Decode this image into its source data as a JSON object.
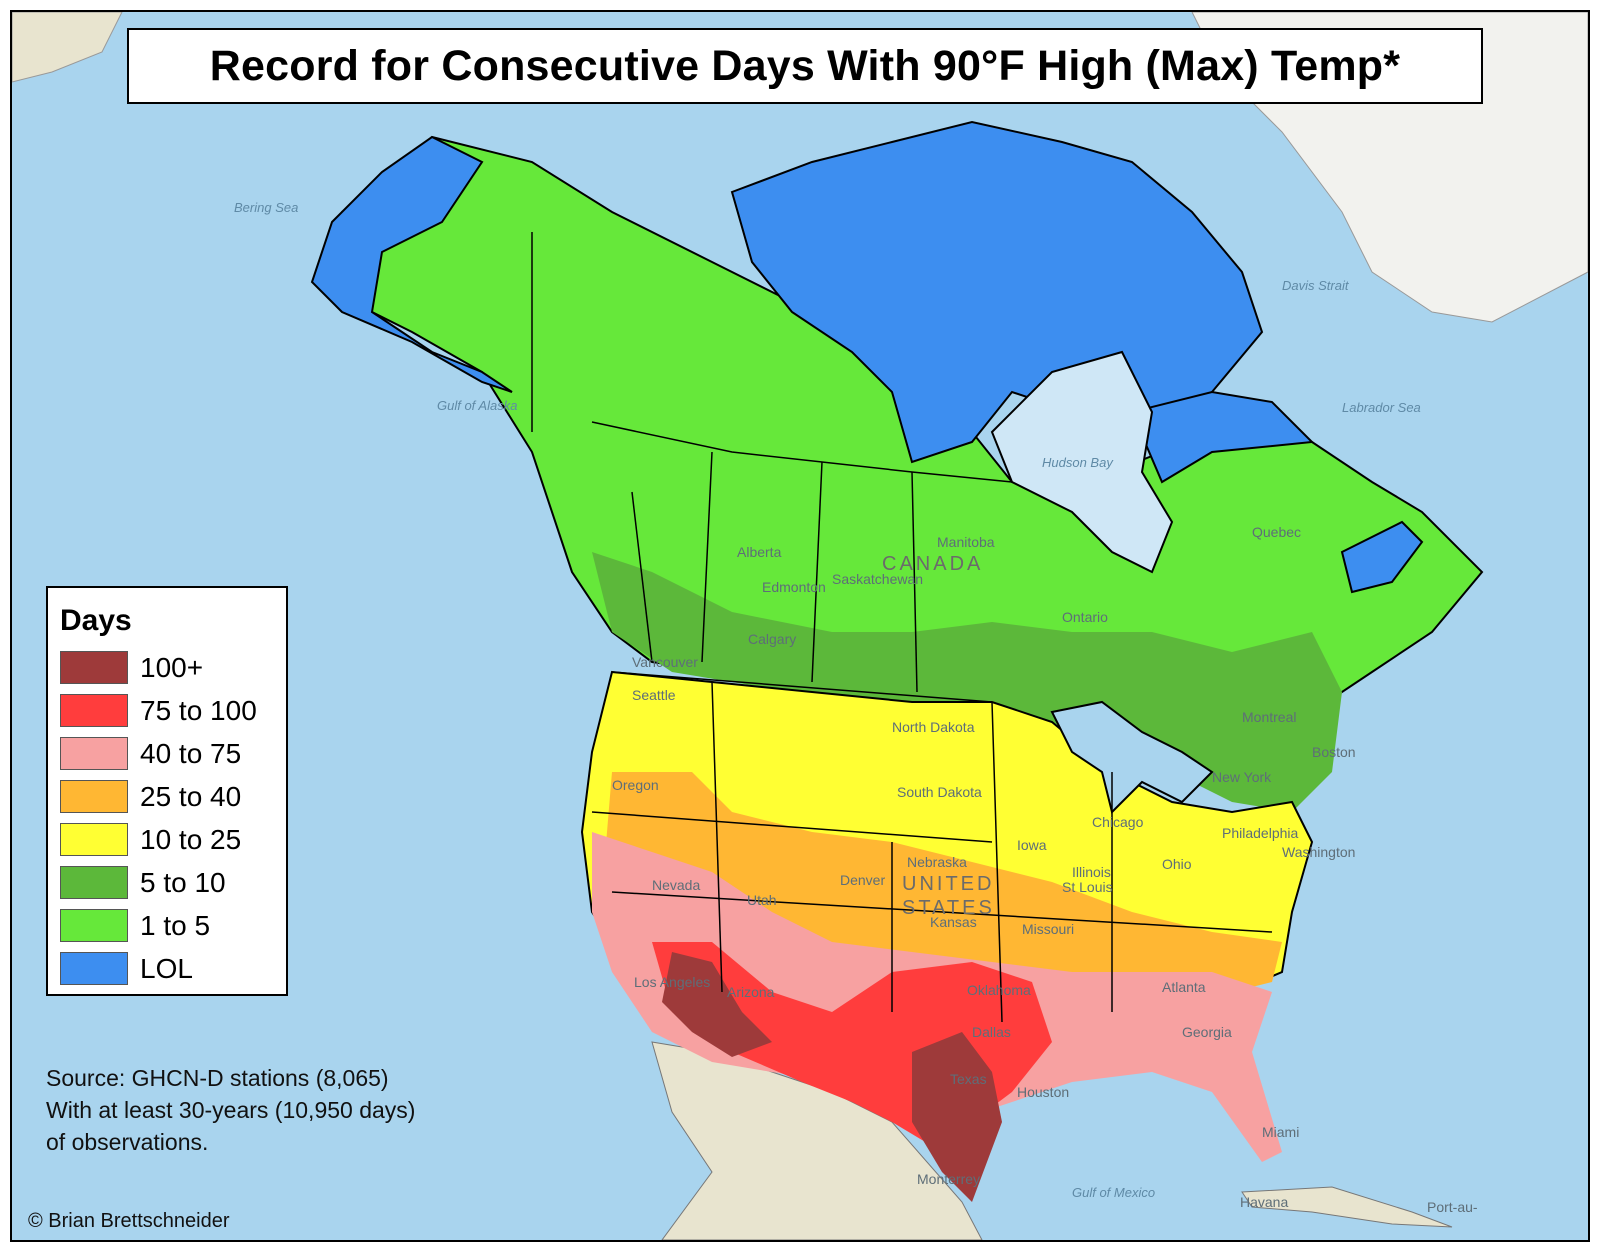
{
  "title": "Record for Consecutive Days With 90°F High (Max) Temp*",
  "legend": {
    "title": "Days",
    "items": [
      {
        "label": "100+",
        "color": "#9e3a3a"
      },
      {
        "label": "75 to 100",
        "color": "#ff3d3d"
      },
      {
        "label": "40 to 75",
        "color": "#f7a1a1"
      },
      {
        "label": "25 to 40",
        "color": "#ffb733"
      },
      {
        "label": "10 to 25",
        "color": "#ffff33"
      },
      {
        "label": "5 to 10",
        "color": "#5cb83a"
      },
      {
        "label": "1 to 5",
        "color": "#66e83a"
      },
      {
        "label": "LOL",
        "color": "#3d8ef0"
      }
    ]
  },
  "source": {
    "line1": "Source: GHCN-D stations (8,065)",
    "line2": "With at least 30-years (10,950 days)",
    "line3": "of observations."
  },
  "copyright": "© Brian Brettschneider",
  "map_labels": {
    "cities": [
      "Edmonton",
      "Calgary",
      "Vancouver",
      "Seattle",
      "Chicago",
      "St Louis",
      "Denver",
      "Los Angeles",
      "Dallas",
      "Houston",
      "Atlanta",
      "Miami",
      "Havana",
      "Monterrey",
      "Boston",
      "Montreal",
      "New York",
      "Philadelphia",
      "Washington",
      "Port-au-"
    ],
    "regions": [
      "Alberta",
      "Saskatchewan",
      "Manitoba",
      "Ontario",
      "Quebec",
      "North Dakota",
      "South Dakota",
      "Nebraska",
      "Kansas",
      "Iowa",
      "Missouri",
      "Illinois",
      "Ohio",
      "Texas",
      "Georgia",
      "Oklahoma",
      "Nevada",
      "Oregon",
      "Arizona",
      "Utah"
    ],
    "countries": [
      "CANADA",
      "UNITED",
      "STATES"
    ],
    "waters": [
      "Bering Sea",
      "Gulf of Alaska",
      "Hudson Bay",
      "Labrador Sea",
      "Davis Strait",
      "Gulf of Mexico"
    ]
  },
  "colors": {
    "ocean": "#a9d4ee",
    "land_outside": "#e8e4cf",
    "greenland": "#f2f2ee"
  }
}
